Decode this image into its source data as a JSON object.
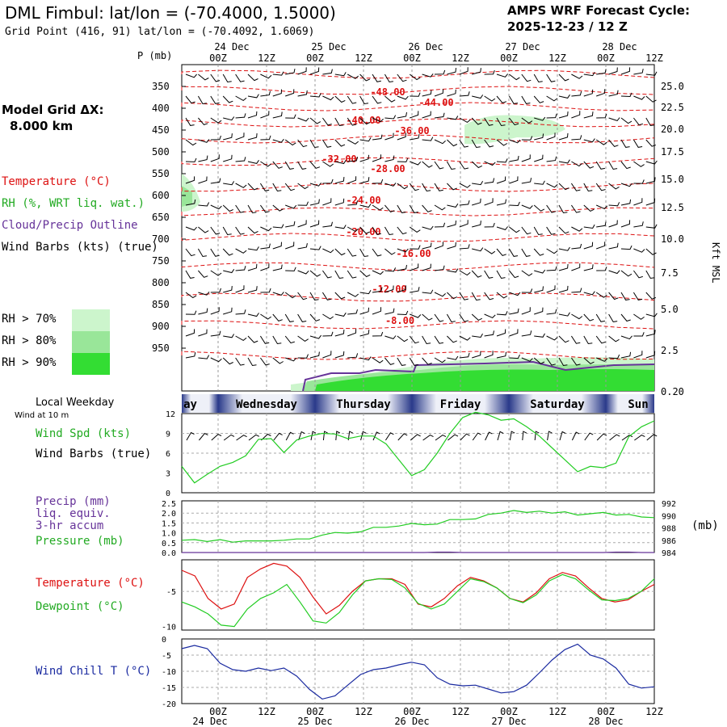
{
  "header": {
    "title": "DML Fimbul:  lat/lon = (-70.4000, 1.5000)",
    "grid_point": "Grid Point (416, 91) lat/lon = (-70.4092, 1.6069)",
    "cycle_line1": "AMPS WRF Forecast Cycle:",
    "cycle_line2": "2025-12-23 / 12  Z"
  },
  "left_panel": {
    "model_grid_line1": "Model Grid ΔX:",
    "model_grid_line2": "8.000 km",
    "temperature_label": "Temperature (°C)",
    "rh_label": "RH (%, WRT liq. wat.)",
    "cloud_label": "Cloud/Precip Outline",
    "wind_label": "Wind Barbs (kts) (true)",
    "rh70": "RH > 70%",
    "rh80": "RH > 80%",
    "rh90": "RH > 90%",
    "local_weekday": "Local Weekday",
    "wind_10m": "Wind at 10 m",
    "wind_spd": "Wind Spd (kts)",
    "wind_barbs": "Wind Barbs (true)",
    "precip1": "Precip (mm)",
    "precip2": "liq. equiv.",
    "precip3": "3-hr accum",
    "pressure": "Pressure (mb)",
    "temp2": "Temperature (°C)",
    "dewpoint": "Dewpoint (°C)",
    "windchill": "Wind Chill T (°C)",
    "mb_unit": "(mb)"
  },
  "colors": {
    "temp": "#dd1111",
    "rh_green": "#22cc22",
    "cloud": "#663399",
    "blue": "#1a2aa0",
    "rh70": "#ccf5cc",
    "rh80": "#99e699",
    "rh90": "#33dd33"
  },
  "chart_data": [
    {
      "type": "line",
      "title": "Vertical cross-section (time-height)",
      "p_axis_label": "P (mb)",
      "pressure_levels": [
        "350",
        "400",
        "450",
        "500",
        "550",
        "600",
        "650",
        "700",
        "750",
        "800",
        "850",
        "900",
        "950"
      ],
      "height_axis_label": "Kft MSL",
      "heights": [
        "25.0",
        "22.5",
        "20.0",
        "17.5",
        "15.0",
        "12.5",
        "10.0",
        "7.5",
        "5.0",
        "2.5",
        "0.20"
      ],
      "time_top": [
        "00Z",
        "12Z",
        "00Z",
        "12Z",
        "00Z",
        "12Z",
        "00Z",
        "12Z",
        "00Z",
        "12Z"
      ],
      "dates_top": [
        "24 Dec",
        "25 Dec",
        "26 Dec",
        "27 Dec",
        "28 Dec"
      ],
      "isotherm_labels": [
        "-48.00",
        "-44.00",
        "-40.00",
        "-36.00",
        "-32.00",
        "-28.00",
        "-24.00",
        "-20.00",
        "-16.00",
        "-12.00",
        "-8.00"
      ]
    },
    {
      "type": "line",
      "title": "10 m Wind Speed",
      "weekdays": [
        "ay",
        "Wednesday",
        "Thursday",
        "Friday",
        "Saturday",
        "Sun"
      ],
      "yticks": [
        "12",
        "9",
        "6",
        "3",
        "0"
      ],
      "ylim": [
        0,
        12
      ],
      "series": [
        {
          "name": "Wind Spd (kts)",
          "values": [
            4,
            1.5,
            2.8,
            4,
            4.6,
            5.6,
            8.1,
            8.2,
            6.1,
            8,
            8.6,
            9,
            8.9,
            8.2,
            8.6,
            8.6,
            7.4,
            5,
            2.6,
            3.5,
            6,
            9,
            11.4,
            12.2,
            11.8,
            11,
            11.2,
            10,
            8.6,
            6.8,
            5,
            3.2,
            4,
            3.8,
            4.5,
            8.5,
            10,
            10.9
          ]
        }
      ]
    },
    {
      "type": "line",
      "title": "Precip and Pressure",
      "yticks_left": [
        "2.5",
        "2.0",
        "1.5",
        "1.0",
        "0.5",
        "0.0"
      ],
      "yticks_right": [
        "992",
        "990",
        "988",
        "986",
        "984"
      ],
      "ylim_left": [
        0,
        2.5
      ],
      "ylim_right": [
        984,
        992
      ],
      "series": [
        {
          "name": "Pressure (mb)",
          "values": [
            985.9,
            986,
            985.7,
            986,
            985.6,
            985.8,
            985.8,
            985.8,
            985.9,
            986.1,
            986.1,
            986.7,
            987.1,
            987,
            987.2,
            987.9,
            987.9,
            988.1,
            988.5,
            988.3,
            988.4,
            989.1,
            989.1,
            989.2,
            989.9,
            990.1,
            990.5,
            990.2,
            990.4,
            990.1,
            990.3,
            989.8,
            990.0,
            990.2,
            989.8,
            989.9,
            989.5,
            989.4
          ]
        },
        {
          "name": "Precip (mm)",
          "values": [
            0,
            0,
            0,
            0,
            0,
            0,
            0,
            0,
            0,
            0,
            0,
            0,
            0,
            0,
            0,
            0,
            0,
            0,
            0,
            0,
            0.02,
            0.02,
            0,
            0,
            0,
            0,
            0,
            0,
            0,
            0,
            0,
            0,
            0,
            0,
            0.02,
            0.02,
            0,
            0
          ]
        }
      ]
    },
    {
      "type": "line",
      "title": "Temperature and Dewpoint",
      "yticks": [
        "-5",
        "-10"
      ],
      "ylim": [
        -10.5,
        -0.5
      ],
      "series": [
        {
          "name": "Temperature (°C)",
          "values": [
            -2,
            -2.8,
            -6,
            -7.5,
            -6.8,
            -3,
            -1.8,
            -1,
            -1.4,
            -3,
            -5.8,
            -8.2,
            -7,
            -5,
            -3.5,
            -3.2,
            -3.2,
            -4,
            -6.8,
            -7.2,
            -6,
            -4.2,
            -3,
            -3.5,
            -4.5,
            -6,
            -6.5,
            -5.2,
            -3.2,
            -2.3,
            -2.8,
            -4.5,
            -6,
            -6.5,
            -6.2,
            -5,
            -4
          ]
        },
        {
          "name": "Dewpoint (°C)",
          "values": [
            -6.5,
            -7.2,
            -8.2,
            -9.8,
            -10,
            -7.5,
            -6,
            -5.2,
            -4,
            -6.5,
            -9.2,
            -9.5,
            -8,
            -5.5,
            -3.5,
            -3.2,
            -3.3,
            -4.5,
            -6.7,
            -7.5,
            -6.8,
            -5,
            -3.2,
            -3.6,
            -4.5,
            -6,
            -6.6,
            -5.5,
            -3.5,
            -2.6,
            -3.2,
            -4.8,
            -6.2,
            -6.3,
            -6,
            -5,
            -3.2
          ]
        }
      ]
    },
    {
      "type": "line",
      "title": "Wind Chill",
      "yticks": [
        "0",
        "-5",
        "-10",
        "-15",
        "-20"
      ],
      "ylim": [
        -20,
        0
      ],
      "time_bottom": [
        "00Z",
        "12Z",
        "00Z",
        "12Z",
        "00Z",
        "12Z",
        "00Z",
        "12Z",
        "00Z",
        "12Z"
      ],
      "dates_bottom": [
        "24 Dec",
        "25 Dec",
        "26 Dec",
        "27 Dec",
        "28 Dec"
      ],
      "series": [
        {
          "name": "Wind Chill T (°C)",
          "values": [
            -3,
            -2,
            -3,
            -7.5,
            -9.5,
            -10,
            -9,
            -9.8,
            -9,
            -11.5,
            -15.6,
            -18.6,
            -17.6,
            -14.3,
            -11,
            -9.5,
            -9,
            -8,
            -7.2,
            -8,
            -12,
            -14,
            -14.5,
            -14.3,
            -15.5,
            -16.7,
            -16.3,
            -14.3,
            -10.5,
            -6.5,
            -3.3,
            -1.6,
            -5,
            -6.2,
            -9,
            -14,
            -15.2,
            -14.8
          ]
        }
      ]
    }
  ]
}
